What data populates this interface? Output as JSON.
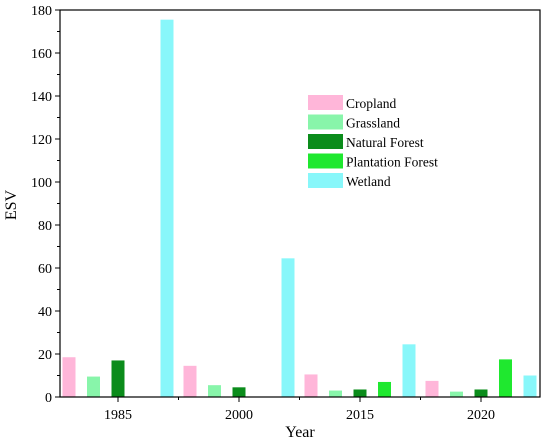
{
  "chart_data": {
    "type": "bar",
    "xlabel": "Year",
    "ylabel": "ESV",
    "ylim": [
      0,
      180
    ],
    "y_ticks": [
      0,
      20,
      40,
      60,
      80,
      100,
      120,
      140,
      160,
      180
    ],
    "categories": [
      "1985",
      "2000",
      "2015",
      "2020"
    ],
    "grid": false,
    "legend_position": "center-right",
    "series": [
      {
        "name": "Cropland",
        "color": "#FFB6D9",
        "values": [
          18.5,
          14.5,
          10.5,
          7.5
        ]
      },
      {
        "name": "Grassland",
        "color": "#88F5AA",
        "values": [
          9.5,
          5.5,
          3.0,
          2.5
        ]
      },
      {
        "name": "Natural Forest",
        "color": "#0B8C1B",
        "values": [
          17.0,
          4.5,
          3.5,
          3.5
        ]
      },
      {
        "name": "Plantation Forest",
        "color": "#1FE82F",
        "values": [
          0,
          0,
          7.0,
          17.5
        ]
      },
      {
        "name": "Wetland",
        "color": "#88F7FA",
        "values": [
          175.5,
          64.5,
          24.5,
          10.0
        ]
      }
    ]
  }
}
